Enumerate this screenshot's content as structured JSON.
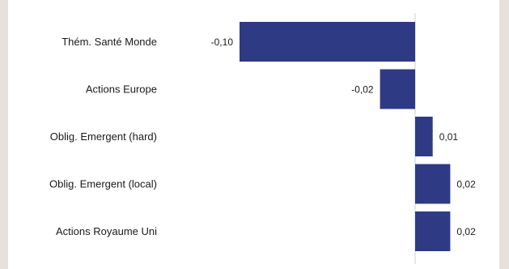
{
  "chart_data": {
    "type": "bar",
    "orientation": "horizontal",
    "categories": [
      "Thém. Santé Monde",
      "Actions Europe",
      "Oblig. Emergent (hard)",
      "Oblig. Emergent (local)",
      "Actions Royaume Uni"
    ],
    "values": [
      -0.1,
      -0.02,
      0.01,
      0.02,
      0.02
    ],
    "value_labels": [
      "-0,10",
      "-0,02",
      "0,01",
      "0,02",
      "0,02"
    ],
    "bar_color": "#2e3a84",
    "zero_line": true,
    "grid": false,
    "legend": "none"
  }
}
